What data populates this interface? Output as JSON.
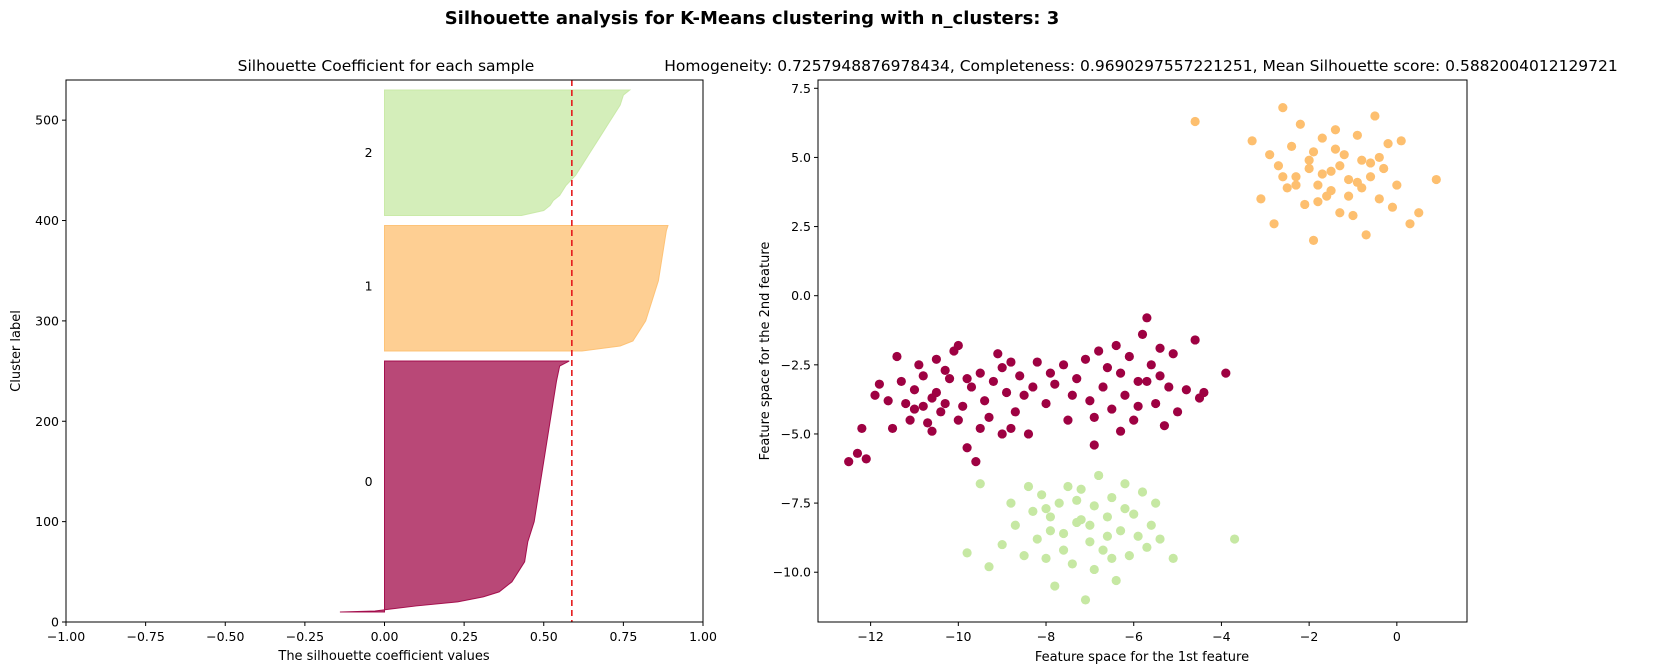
{
  "suptitle": "Silhouette analysis for K-Means clustering with n_clusters: 3",
  "colors": {
    "cluster0": "#9e0142",
    "cluster1": "#fdbf6f",
    "cluster2": "#c6e8a3",
    "mean_line": "#e41a1c"
  },
  "chart_data": [
    {
      "type": "area",
      "title": "Silhouette Coefficient for each sample",
      "xlabel": "The silhouette coefficient values",
      "ylabel": "Cluster label",
      "xlim": [
        -1.0,
        1.0
      ],
      "ylim": [
        0,
        540
      ],
      "xticks": [
        -1.0,
        -0.75,
        -0.5,
        -0.25,
        0.0,
        0.25,
        0.5,
        0.75,
        1.0
      ],
      "xtick_labels": [
        "−1.00",
        "−0.75",
        "−0.50",
        "−0.25",
        "0.00",
        "0.25",
        "0.50",
        "0.75",
        "1.00"
      ],
      "yticks": [
        0,
        100,
        200,
        300,
        400,
        500
      ],
      "ytick_labels": [
        "0",
        "100",
        "200",
        "300",
        "400",
        "500"
      ],
      "mean_silhouette": 0.5882,
      "clusters": [
        {
          "label": "0",
          "y_lower": 10,
          "y_upper": 260,
          "label_y": 140,
          "profile": [
            [
              10,
              -0.14
            ],
            [
              11,
              -0.03
            ],
            [
              13,
              0.02
            ],
            [
              16,
              0.1
            ],
            [
              20,
              0.23
            ],
            [
              25,
              0.31
            ],
            [
              30,
              0.36
            ],
            [
              40,
              0.4
            ],
            [
              50,
              0.42
            ],
            [
              60,
              0.44
            ],
            [
              80,
              0.45
            ],
            [
              100,
              0.47
            ],
            [
              120,
              0.48
            ],
            [
              140,
              0.49
            ],
            [
              160,
              0.5
            ],
            [
              180,
              0.51
            ],
            [
              200,
              0.52
            ],
            [
              220,
              0.53
            ],
            [
              240,
              0.54
            ],
            [
              255,
              0.55
            ],
            [
              260,
              0.58
            ]
          ]
        },
        {
          "label": "1",
          "y_lower": 270,
          "y_upper": 395,
          "label_y": 335,
          "profile": [
            [
              270,
              0.62
            ],
            [
              275,
              0.74
            ],
            [
              280,
              0.78
            ],
            [
              290,
              0.8
            ],
            [
              300,
              0.82
            ],
            [
              310,
              0.83
            ],
            [
              320,
              0.84
            ],
            [
              330,
              0.85
            ],
            [
              340,
              0.86
            ],
            [
              350,
              0.865
            ],
            [
              360,
              0.87
            ],
            [
              370,
              0.875
            ],
            [
              380,
              0.88
            ],
            [
              390,
              0.885
            ],
            [
              395,
              0.89
            ]
          ]
        },
        {
          "label": "2",
          "y_lower": 405,
          "y_upper": 530,
          "label_y": 468,
          "profile": [
            [
              405,
              0.43
            ],
            [
              410,
              0.5
            ],
            [
              415,
              0.52
            ],
            [
              420,
              0.53
            ],
            [
              425,
              0.55
            ],
            [
              435,
              0.57
            ],
            [
              445,
              0.6
            ],
            [
              455,
              0.62
            ],
            [
              465,
              0.64
            ],
            [
              475,
              0.66
            ],
            [
              485,
              0.68
            ],
            [
              495,
              0.7
            ],
            [
              505,
              0.72
            ],
            [
              515,
              0.74
            ],
            [
              525,
              0.75
            ],
            [
              530,
              0.77
            ]
          ]
        }
      ]
    },
    {
      "type": "scatter",
      "title": "Homogeneity: 0.7257948876978434, Completeness: 0.9690297557221251, Mean Silhouette score: 0.5882004012129721",
      "xlabel": "Feature space for the 1st feature",
      "ylabel": "Feature space for the 2nd feature",
      "xlim": [
        -13.2,
        1.6
      ],
      "ylim": [
        -11.8,
        7.8
      ],
      "xticks": [
        -12,
        -10,
        -8,
        -6,
        -4,
        -2,
        0
      ],
      "xtick_labels": [
        "−12",
        "−10",
        "−8",
        "−6",
        "−4",
        "−2",
        "0"
      ],
      "yticks": [
        -10.0,
        -7.5,
        -5.0,
        -2.5,
        0.0,
        2.5,
        5.0,
        7.5
      ],
      "ytick_labels": [
        "−10.0",
        "−7.5",
        "−5.0",
        "−2.5",
        "0.0",
        "2.5",
        "5.0",
        "7.5"
      ],
      "series": [
        {
          "cluster": 0,
          "points": [
            [
              -12.5,
              -6.0
            ],
            [
              -12.3,
              -5.7
            ],
            [
              -12.1,
              -5.9
            ],
            [
              -12.2,
              -4.8
            ],
            [
              -11.9,
              -3.6
            ],
            [
              -11.8,
              -3.2
            ],
            [
              -11.6,
              -3.8
            ],
            [
              -11.5,
              -4.8
            ],
            [
              -11.4,
              -2.2
            ],
            [
              -11.3,
              -3.1
            ],
            [
              -11.2,
              -3.9
            ],
            [
              -11.1,
              -4.5
            ],
            [
              -11.0,
              -3.4
            ],
            [
              -10.9,
              -2.5
            ],
            [
              -10.8,
              -4.0
            ],
            [
              -10.8,
              -2.9
            ],
            [
              -10.7,
              -4.6
            ],
            [
              -10.6,
              -3.7
            ],
            [
              -10.5,
              -2.3
            ],
            [
              -10.5,
              -3.5
            ],
            [
              -10.4,
              -4.2
            ],
            [
              -10.3,
              -2.7
            ],
            [
              -10.2,
              -3.0
            ],
            [
              -10.1,
              -2.0
            ],
            [
              -10.0,
              -4.5
            ],
            [
              -10.0,
              -1.8
            ],
            [
              -9.9,
              -4.0
            ],
            [
              -9.8,
              -5.5
            ],
            [
              -9.7,
              -3.3
            ],
            [
              -9.6,
              -6.0
            ],
            [
              -9.5,
              -2.8
            ],
            [
              -9.4,
              -3.8
            ],
            [
              -9.3,
              -4.4
            ],
            [
              -9.2,
              -3.1
            ],
            [
              -9.1,
              -2.1
            ],
            [
              -9.0,
              -5.0
            ],
            [
              -8.9,
              -3.5
            ],
            [
              -8.8,
              -2.4
            ],
            [
              -8.7,
              -4.2
            ],
            [
              -8.6,
              -2.9
            ],
            [
              -8.5,
              -3.6
            ],
            [
              -8.4,
              -5.0
            ],
            [
              -8.2,
              -2.4
            ],
            [
              -8.0,
              -3.9
            ],
            [
              -7.8,
              -3.2
            ],
            [
              -7.6,
              -2.5
            ],
            [
              -7.5,
              -4.5
            ],
            [
              -7.3,
              -3.0
            ],
            [
              -7.1,
              -2.3
            ],
            [
              -7.0,
              -3.8
            ],
            [
              -6.9,
              -5.4
            ],
            [
              -6.8,
              -2.0
            ],
            [
              -6.7,
              -3.3
            ],
            [
              -6.5,
              -4.1
            ],
            [
              -6.4,
              -1.8
            ],
            [
              -6.3,
              -2.8
            ],
            [
              -6.2,
              -3.6
            ],
            [
              -6.1,
              -2.2
            ],
            [
              -6.0,
              -4.5
            ],
            [
              -5.9,
              -3.1
            ],
            [
              -5.8,
              -1.4
            ],
            [
              -5.7,
              -0.8
            ],
            [
              -5.6,
              -2.5
            ],
            [
              -5.5,
              -3.9
            ],
            [
              -5.4,
              -1.9
            ],
            [
              -5.3,
              -4.7
            ],
            [
              -5.2,
              -3.3
            ],
            [
              -5.1,
              -2.1
            ],
            [
              -5.0,
              -4.2
            ],
            [
              -4.8,
              -3.4
            ],
            [
              -4.6,
              -1.6
            ],
            [
              -4.5,
              -3.7
            ],
            [
              -4.4,
              -3.5
            ],
            [
              -3.9,
              -2.8
            ],
            [
              -9.8,
              -3.0
            ],
            [
              -10.3,
              -3.9
            ],
            [
              -8.8,
              -4.8
            ],
            [
              -7.4,
              -3.6
            ],
            [
              -6.6,
              -2.6
            ],
            [
              -5.9,
              -4.0
            ],
            [
              -11.0,
              -4.1
            ],
            [
              -9.0,
              -2.6
            ],
            [
              -8.3,
              -3.3
            ],
            [
              -6.3,
              -4.9
            ],
            [
              -5.7,
              -3.1
            ],
            [
              -10.6,
              -4.9
            ],
            [
              -7.9,
              -2.8
            ],
            [
              -6.9,
              -4.4
            ],
            [
              -5.4,
              -2.9
            ],
            [
              -9.5,
              -4.8
            ]
          ]
        },
        {
          "cluster": 1,
          "points": [
            [
              -4.6,
              6.3
            ],
            [
              -3.3,
              5.6
            ],
            [
              -3.1,
              3.5
            ],
            [
              -2.9,
              5.1
            ],
            [
              -2.8,
              2.6
            ],
            [
              -2.7,
              4.7
            ],
            [
              -2.6,
              6.8
            ],
            [
              -2.5,
              3.9
            ],
            [
              -2.4,
              5.4
            ],
            [
              -2.3,
              4.3
            ],
            [
              -2.2,
              6.2
            ],
            [
              -2.1,
              3.3
            ],
            [
              -2.0,
              4.9
            ],
            [
              -1.9,
              2.0
            ],
            [
              -1.8,
              4.0
            ],
            [
              -1.7,
              5.7
            ],
            [
              -1.6,
              3.6
            ],
            [
              -1.5,
              4.5
            ],
            [
              -1.4,
              6.0
            ],
            [
              -1.3,
              3.0
            ],
            [
              -1.2,
              5.1
            ],
            [
              -1.1,
              4.2
            ],
            [
              -1.0,
              2.9
            ],
            [
              -0.9,
              5.8
            ],
            [
              -0.8,
              3.9
            ],
            [
              -0.7,
              2.2
            ],
            [
              -0.6,
              4.8
            ],
            [
              -0.5,
              6.5
            ],
            [
              -0.4,
              3.5
            ],
            [
              -0.3,
              4.6
            ],
            [
              -0.2,
              5.5
            ],
            [
              -0.1,
              3.2
            ],
            [
              0.0,
              4.0
            ],
            [
              0.1,
              5.6
            ],
            [
              0.3,
              2.6
            ],
            [
              0.5,
              3.0
            ],
            [
              0.9,
              4.2
            ],
            [
              -2.3,
              4.0
            ],
            [
              -1.7,
              4.4
            ],
            [
              -1.3,
              4.7
            ],
            [
              -0.9,
              4.1
            ],
            [
              -1.5,
              3.8
            ],
            [
              -2.0,
              4.6
            ],
            [
              -1.1,
              3.6
            ],
            [
              -0.6,
              4.3
            ],
            [
              -1.9,
              5.2
            ],
            [
              -1.4,
              5.3
            ],
            [
              -0.4,
              5.0
            ],
            [
              -2.6,
              4.3
            ],
            [
              -1.8,
              3.4
            ],
            [
              -0.8,
              4.9
            ]
          ]
        },
        {
          "cluster": 2,
          "points": [
            [
              -9.8,
              -9.3
            ],
            [
              -9.5,
              -6.8
            ],
            [
              -9.3,
              -9.8
            ],
            [
              -9.0,
              -9.0
            ],
            [
              -8.8,
              -7.5
            ],
            [
              -8.7,
              -8.3
            ],
            [
              -8.5,
              -9.4
            ],
            [
              -8.4,
              -6.9
            ],
            [
              -8.3,
              -7.8
            ],
            [
              -8.2,
              -8.8
            ],
            [
              -8.1,
              -7.2
            ],
            [
              -8.0,
              -9.5
            ],
            [
              -7.9,
              -8.0
            ],
            [
              -7.8,
              -10.5
            ],
            [
              -7.7,
              -7.5
            ],
            [
              -7.6,
              -8.6
            ],
            [
              -7.5,
              -6.9
            ],
            [
              -7.4,
              -9.7
            ],
            [
              -7.3,
              -8.2
            ],
            [
              -7.2,
              -7.0
            ],
            [
              -7.1,
              -11.0
            ],
            [
              -7.0,
              -8.9
            ],
            [
              -6.9,
              -7.6
            ],
            [
              -6.8,
              -6.5
            ],
            [
              -6.7,
              -9.2
            ],
            [
              -6.6,
              -8.0
            ],
            [
              -6.5,
              -7.3
            ],
            [
              -6.4,
              -10.3
            ],
            [
              -6.3,
              -8.5
            ],
            [
              -6.2,
              -6.8
            ],
            [
              -6.1,
              -9.4
            ],
            [
              -6.0,
              -7.9
            ],
            [
              -5.9,
              -8.7
            ],
            [
              -5.8,
              -7.1
            ],
            [
              -5.7,
              -9.1
            ],
            [
              -5.6,
              -8.3
            ],
            [
              -5.5,
              -7.5
            ],
            [
              -5.4,
              -8.8
            ],
            [
              -5.1,
              -9.5
            ],
            [
              -3.7,
              -8.8
            ],
            [
              -7.9,
              -8.5
            ],
            [
              -7.2,
              -8.1
            ],
            [
              -6.6,
              -8.7
            ],
            [
              -7.6,
              -9.2
            ],
            [
              -6.9,
              -9.9
            ],
            [
              -8.0,
              -7.7
            ],
            [
              -6.2,
              -7.7
            ],
            [
              -7.3,
              -7.4
            ],
            [
              -6.5,
              -9.5
            ],
            [
              -7.0,
              -8.3
            ]
          ]
        }
      ]
    }
  ]
}
